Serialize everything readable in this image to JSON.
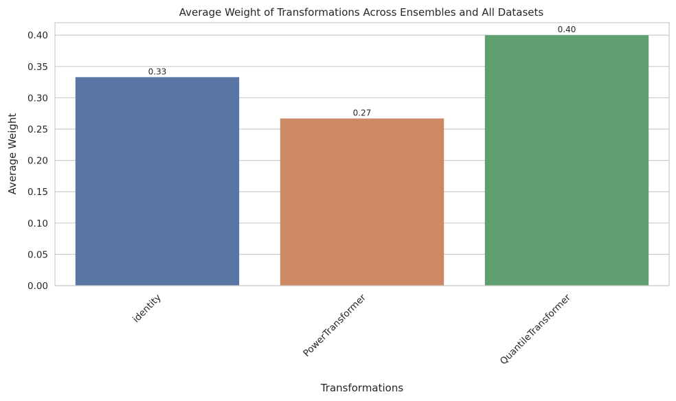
{
  "chart_data": {
    "type": "bar",
    "title": "Average Weight of Transformations Across Ensembles and All Datasets",
    "xlabel": "Transformations",
    "ylabel": "Average Weight",
    "categories": [
      "identity",
      "PowerTransformer",
      "QuantileTransformer"
    ],
    "values": [
      0.333,
      0.267,
      0.4
    ],
    "data_labels": [
      "0.33",
      "0.27",
      "0.40"
    ],
    "colors": [
      "#5975a4",
      "#cc8963",
      "#5f9e6e"
    ],
    "ylim": [
      0,
      0.42
    ],
    "yticks": [
      0,
      0.05,
      0.1,
      0.15,
      0.2,
      0.25,
      0.3,
      0.35,
      0.4
    ],
    "ytick_labels": [
      "0.00",
      "0.05",
      "0.10",
      "0.15",
      "0.20",
      "0.25",
      "0.30",
      "0.35",
      "0.40"
    ],
    "grid": true,
    "xtick_rotation": 45
  }
}
